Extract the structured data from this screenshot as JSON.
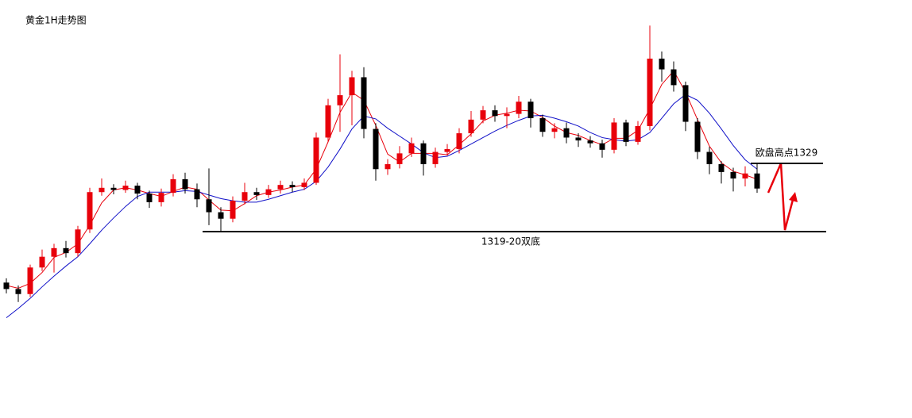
{
  "chart_data": {
    "type": "candlestick",
    "title": "黄金1H走势图",
    "up_color": "#e8000b",
    "down_color": "#000000",
    "open": [
      1312.4,
      1311.5,
      1310.8,
      1314.5,
      1316.0,
      1317.2,
      1316.5,
      1319.8,
      1325.0,
      1325.6,
      1325.3,
      1325.9,
      1324.8,
      1323.6,
      1324.9,
      1326.8,
      1325.4,
      1324.0,
      1322.2,
      1321.3,
      1323.8,
      1325.0,
      1324.6,
      1325.4,
      1326.0,
      1325.7,
      1326.3,
      1332.6,
      1337.1,
      1338.5,
      1341.0,
      1333.8,
      1328.2,
      1328.9,
      1330.4,
      1331.8,
      1328.9,
      1330.6,
      1331.0,
      1333.2,
      1335.1,
      1336.4,
      1335.6,
      1335.9,
      1337.6,
      1335.3,
      1333.4,
      1333.9,
      1332.6,
      1332.2,
      1331.8,
      1330.9,
      1334.7,
      1332.0,
      1334.2,
      1343.6,
      1342.1,
      1339.9,
      1334.8,
      1330.6,
      1328.9,
      1327.8,
      1326.9,
      1327.6
    ],
    "high": [
      1313.0,
      1312.0,
      1314.9,
      1317.0,
      1317.8,
      1318.2,
      1320.3,
      1325.6,
      1326.9,
      1326.1,
      1326.6,
      1326.3,
      1325.2,
      1325.5,
      1327.5,
      1327.7,
      1326.2,
      1328.3,
      1322.9,
      1324.4,
      1326.3,
      1325.6,
      1326.0,
      1326.6,
      1326.5,
      1326.9,
      1333.3,
      1338.0,
      1344.2,
      1341.9,
      1342.4,
      1334.6,
      1329.6,
      1331.4,
      1332.6,
      1332.2,
      1331.2,
      1331.7,
      1333.9,
      1336.3,
      1337.0,
      1337.1,
      1336.8,
      1338.4,
      1338.0,
      1335.8,
      1334.6,
      1334.7,
      1333.2,
      1332.8,
      1332.3,
      1335.3,
      1335.1,
      1334.9,
      1348.2,
      1344.6,
      1343.2,
      1340.4,
      1335.3,
      1331.3,
      1329.3,
      1328.4,
      1328.6,
      1328.9
    ],
    "low": [
      1310.9,
      1309.7,
      1310.4,
      1314.0,
      1313.8,
      1315.9,
      1316.0,
      1319.3,
      1324.5,
      1324.7,
      1324.9,
      1324.0,
      1322.8,
      1323.0,
      1324.4,
      1324.8,
      1322.9,
      1320.4,
      1319.5,
      1320.8,
      1323.3,
      1323.9,
      1324.2,
      1324.8,
      1325.0,
      1325.3,
      1326.0,
      1332.0,
      1333.4,
      1334.3,
      1332.5,
      1326.6,
      1327.4,
      1328.3,
      1329.9,
      1327.3,
      1328.4,
      1330.1,
      1330.4,
      1332.7,
      1334.6,
      1334.8,
      1333.9,
      1335.3,
      1334.0,
      1332.7,
      1332.5,
      1331.8,
      1331.3,
      1331.2,
      1329.8,
      1330.4,
      1331.4,
      1331.6,
      1333.6,
      1340.4,
      1339.0,
      1333.5,
      1329.6,
      1327.5,
      1326.2,
      1325.1,
      1325.8,
      1324.9
    ],
    "close": [
      1311.5,
      1310.8,
      1314.5,
      1316.0,
      1317.2,
      1316.5,
      1319.8,
      1325.0,
      1325.6,
      1325.3,
      1325.9,
      1324.8,
      1323.6,
      1324.9,
      1326.8,
      1325.4,
      1324.0,
      1322.2,
      1321.3,
      1323.8,
      1325.0,
      1324.6,
      1325.4,
      1326.0,
      1325.7,
      1326.3,
      1332.6,
      1337.1,
      1338.5,
      1341.0,
      1333.8,
      1328.2,
      1328.9,
      1330.4,
      1331.8,
      1328.9,
      1330.6,
      1331.0,
      1333.2,
      1335.1,
      1336.4,
      1335.6,
      1335.9,
      1337.6,
      1335.3,
      1333.4,
      1333.9,
      1332.6,
      1332.2,
      1331.8,
      1330.9,
      1334.7,
      1332.0,
      1334.2,
      1343.6,
      1342.1,
      1339.9,
      1334.8,
      1330.6,
      1328.9,
      1327.8,
      1326.9,
      1327.6,
      1325.5
    ],
    "lines": [
      {
        "color": "#e8000b",
        "values": [
          1312.0,
          1311.6,
          1312.3,
          1313.8,
          1315.9,
          1316.6,
          1317.8,
          1320.4,
          1323.5,
          1325.3,
          1325.6,
          1325.3,
          1324.8,
          1324.4,
          1325.1,
          1325.7,
          1325.4,
          1323.9,
          1322.5,
          1322.4,
          1323.4,
          1324.5,
          1325.0,
          1325.3,
          1325.7,
          1326.0,
          1328.2,
          1332.0,
          1336.1,
          1338.9,
          1337.8,
          1334.3,
          1330.3,
          1329.2,
          1330.4,
          1330.4,
          1330.4,
          1330.2,
          1331.6,
          1333.1,
          1334.9,
          1335.7,
          1336.0,
          1336.4,
          1336.3,
          1335.4,
          1334.2,
          1333.3,
          1332.9,
          1332.2,
          1331.6,
          1332.5,
          1332.5,
          1333.6,
          1336.6,
          1340.0,
          1341.9,
          1338.9,
          1335.1,
          1331.4,
          1329.1,
          1327.9,
          1327.4,
          1326.8
        ]
      },
      {
        "color": "#1010c8",
        "values": [
          1307.5,
          1308.8,
          1310.2,
          1311.8,
          1313.3,
          1314.7,
          1316.0,
          1317.8,
          1319.7,
          1321.4,
          1323.0,
          1324.4,
          1325.0,
          1325.0,
          1325.0,
          1325.2,
          1325.1,
          1324.6,
          1324.1,
          1323.8,
          1323.6,
          1323.6,
          1324.0,
          1324.5,
          1325.0,
          1325.4,
          1326.5,
          1328.5,
          1331.0,
          1333.8,
          1335.6,
          1335.2,
          1333.9,
          1332.8,
          1331.7,
          1330.5,
          1329.8,
          1330.0,
          1330.8,
          1331.7,
          1332.6,
          1333.5,
          1334.3,
          1335.0,
          1335.6,
          1335.7,
          1335.3,
          1334.8,
          1334.2,
          1333.3,
          1332.6,
          1332.3,
          1332.1,
          1332.3,
          1333.3,
          1335.3,
          1337.3,
          1338.6,
          1337.8,
          1336.0,
          1333.8,
          1331.5,
          1329.5,
          1328.2
        ]
      }
    ],
    "levels": [
      {
        "text": "欧盘高点1329",
        "value": 1329
      },
      {
        "text": "1319-20双底",
        "value": 1319.5
      }
    ]
  }
}
